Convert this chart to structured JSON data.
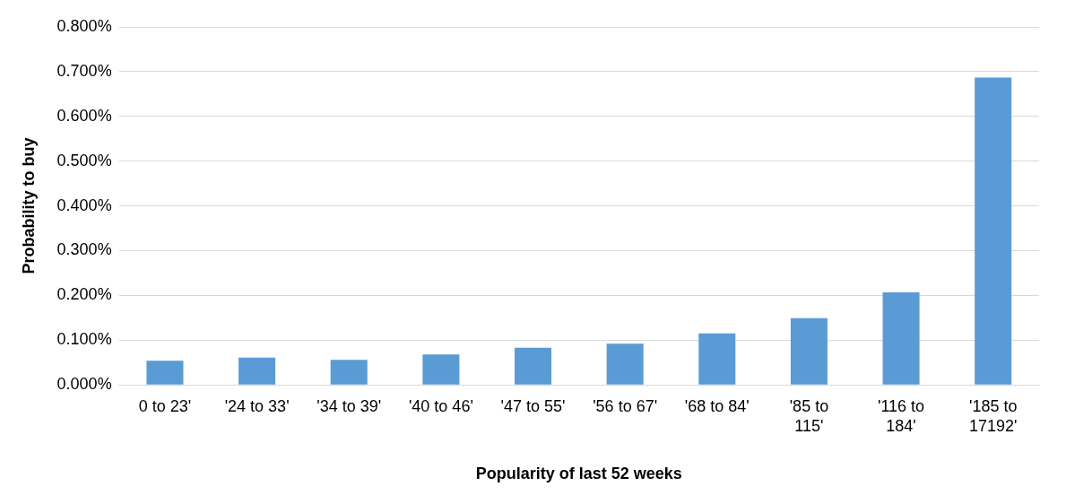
{
  "chart_data": {
    "type": "bar",
    "xlabel": "Popularity of last 52 weeks",
    "ylabel": "Probability to buy",
    "categories": [
      "0 to 23'",
      "'24 to 33'",
      "'34 to 39'",
      "'40 to 46'",
      "'47 to 55'",
      "'56 to 67'",
      "'68 to 84'",
      "'85 to 115'",
      "'116 to 184'",
      "'185 to 17192'"
    ],
    "values": [
      0.054,
      0.061,
      0.056,
      0.068,
      0.083,
      0.092,
      0.115,
      0.149,
      0.207,
      0.687
    ],
    "color": "#5b9bd5",
    "ylim": [
      0,
      0.8
    ],
    "yticks": [
      {
        "value": 0,
        "label": "0.000%"
      },
      {
        "value": 0.1,
        "label": "0.100%"
      },
      {
        "value": 0.2,
        "label": "0.200%"
      },
      {
        "value": 0.3,
        "label": "0.300%"
      },
      {
        "value": 0.4,
        "label": "0.400%"
      },
      {
        "value": 0.5,
        "label": "0.500%"
      },
      {
        "value": 0.6,
        "label": "0.600%"
      },
      {
        "value": 0.7,
        "label": "0.700%"
      },
      {
        "value": 0.8,
        "label": "0.800%"
      }
    ],
    "grid": "y",
    "legend": false
  }
}
